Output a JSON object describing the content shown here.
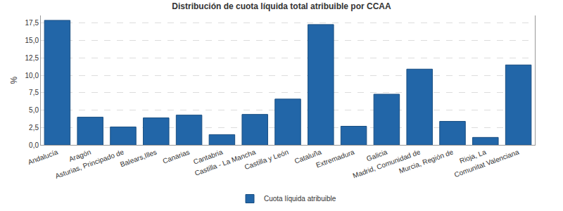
{
  "chart_data": {
    "type": "bar",
    "title": "Distribución de cuota líquida total atribuible por CCAA",
    "y_label": "%",
    "categories": [
      "Andalucía",
      "Aragón",
      "Asturias, Principado de",
      "Balears,Illes",
      "Canarias",
      "Cantabria",
      "Castilla - La Mancha",
      "Castilla y León",
      "Cataluña",
      "Extremadura",
      "Galicia",
      "Madrid, Comunidad de",
      "Murcia, Región de",
      "Rioja, La",
      "Comunitat Valenciana"
    ],
    "series": [
      {
        "name": "Cuota líquida atribuible",
        "color": "#2266a8",
        "values": [
          17.9,
          4.0,
          2.6,
          3.9,
          4.3,
          1.5,
          4.4,
          6.6,
          17.3,
          2.7,
          7.3,
          10.9,
          3.4,
          1.1,
          11.5
        ]
      }
    ],
    "ylim": [
      0,
      18.6
    ],
    "yticks": [
      {
        "value": 0,
        "label": "0,0"
      },
      {
        "value": 2.5,
        "label": "2,5"
      },
      {
        "value": 5,
        "label": "5,0"
      },
      {
        "value": 7.5,
        "label": "7,5"
      },
      {
        "value": 10,
        "label": "10,0"
      },
      {
        "value": 12.5,
        "label": "12,5"
      },
      {
        "value": 15,
        "label": "15,0"
      },
      {
        "value": 17.5,
        "label": "17,5"
      }
    ],
    "grid": true,
    "legend": "bottom"
  }
}
